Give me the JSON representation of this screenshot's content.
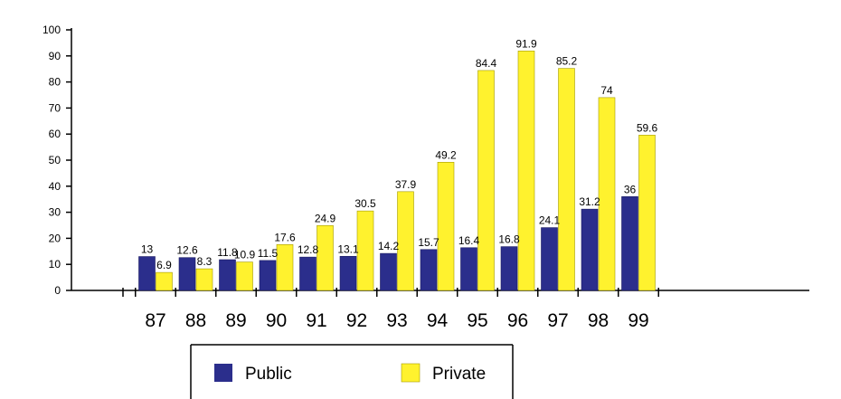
{
  "chart_data": {
    "type": "bar",
    "categories": [
      "87",
      "88",
      "89",
      "90",
      "91",
      "92",
      "93",
      "94",
      "95",
      "96",
      "97",
      "98",
      "99"
    ],
    "series": [
      {
        "name": "Public",
        "color": "#2b2e8c",
        "values": [
          13,
          12.6,
          11.8,
          11.5,
          12.8,
          13.1,
          14.2,
          15.7,
          16.4,
          16.8,
          24.1,
          31.2,
          36
        ]
      },
      {
        "name": "Private",
        "color": "#fff22e",
        "values": [
          6.9,
          8.3,
          10.9,
          17.6,
          24.9,
          30.5,
          37.9,
          49.2,
          84.4,
          91.9,
          85.2,
          74,
          59.6
        ]
      }
    ],
    "data_labels": {
      "Public": [
        "13",
        "12.6",
        "11.8",
        "11.5",
        "12.8",
        "13.1",
        "14.2",
        "15.7",
        "16.4",
        "16.8",
        "24.1",
        "31.2",
        "36"
      ],
      "Private": [
        "6.9",
        "8.3",
        "10.9",
        "17.6",
        "24.9",
        "30.5",
        "37.9",
        "49.2",
        "84.4",
        "91.9",
        "85.2",
        "74",
        "59.6"
      ]
    },
    "y_ticks": [
      "0",
      "10",
      "20",
      "30",
      "40",
      "50",
      "60",
      "70",
      "80",
      "90",
      "100"
    ],
    "ylim": [
      0,
      100
    ],
    "grid": false,
    "legend_position": "bottom",
    "title": "",
    "xlabel": "",
    "ylabel": ""
  }
}
